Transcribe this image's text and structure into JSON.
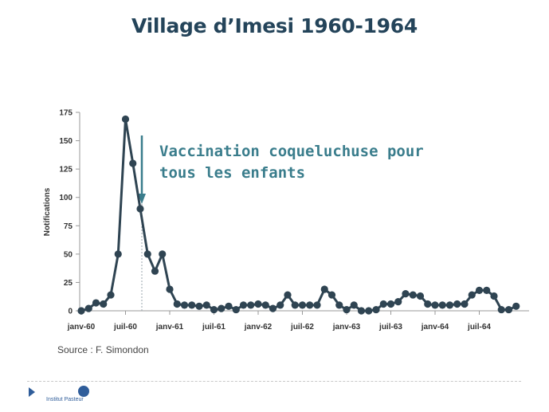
{
  "slide": {
    "title": "Village d’Imesi 1960-1964",
    "source": "Source : F. Simondon",
    "logo_text": "Institut Pasteur",
    "logo_icon": "institut-pasteur-logo-icon"
  },
  "chart_data": {
    "type": "line",
    "title": "Village d’Imesi 1960-1964",
    "ylabel": "Notifications",
    "xlabel": "",
    "ylim": [
      0,
      175
    ],
    "yticks": [
      0,
      25,
      50,
      75,
      100,
      125,
      150,
      175
    ],
    "xtick_labels": [
      "janv-60",
      "juil-60",
      "janv-61",
      "juil-61",
      "janv-62",
      "juil-62",
      "janv-63",
      "juil-63",
      "janv-64",
      "juil-64"
    ],
    "grid": false,
    "line_color": "#2f4452",
    "annotation": {
      "lines": [
        "Vaccination coqueluchuse pour",
        "tous les enfants"
      ],
      "color": "#3a7d8c",
      "arrow_x": "sept-60"
    },
    "x": [
      "janv-60",
      "févr-60",
      "mars-60",
      "avr-60",
      "mai-60",
      "juin-60",
      "juil-60",
      "août-60",
      "sept-60",
      "oct-60",
      "nov-60",
      "déc-60",
      "janv-61",
      "févr-61",
      "mars-61",
      "avr-61",
      "mai-61",
      "juin-61",
      "juil-61",
      "août-61",
      "sept-61",
      "oct-61",
      "nov-61",
      "déc-61",
      "janv-62",
      "févr-62",
      "mars-62",
      "avr-62",
      "mai-62",
      "juin-62",
      "juil-62",
      "août-62",
      "sept-62",
      "oct-62",
      "nov-62",
      "déc-62",
      "janv-63",
      "févr-63",
      "mars-63",
      "avr-63",
      "mai-63",
      "juin-63",
      "juil-63",
      "août-63",
      "sept-63",
      "oct-63",
      "nov-63",
      "déc-63",
      "janv-64",
      "févr-64",
      "mars-64",
      "avr-64",
      "mai-64",
      "juin-64",
      "juil-64",
      "août-64",
      "sept-64",
      "oct-64",
      "nov-64",
      "déc-64"
    ],
    "series": [
      {
        "values": [
          0,
          2,
          7,
          6,
          14,
          50,
          169,
          130,
          90,
          50,
          35,
          50,
          19,
          6,
          5,
          5,
          4,
          5,
          1,
          2,
          4,
          1,
          5,
          5,
          6,
          5,
          2,
          5,
          14,
          5,
          5,
          5,
          5,
          19,
          14,
          5,
          1,
          5,
          0,
          0,
          1,
          6,
          6,
          8,
          15,
          14,
          13,
          6,
          5,
          5,
          5,
          6,
          6,
          14,
          18,
          18,
          13,
          1,
          1,
          4
        ]
      }
    ]
  }
}
